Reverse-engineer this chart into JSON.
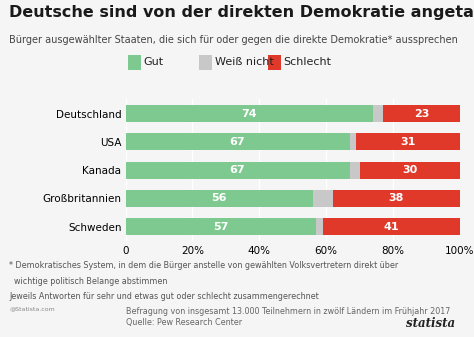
{
  "title": "Deutsche sind von der direkten Demokratie angetan",
  "subtitle": "Bürger ausgewählter Staaten, die sich für oder gegen die direkte Demokratie* aussprechen",
  "countries": [
    "Deutschland",
    "USA",
    "Kanada",
    "Großbritannien",
    "Schweden"
  ],
  "gut": [
    74,
    67,
    67,
    56,
    57
  ],
  "weiss_nicht": [
    3,
    2,
    3,
    6,
    2
  ],
  "schlecht": [
    23,
    31,
    30,
    38,
    41
  ],
  "color_gut": "#7DC98F",
  "color_weiss": "#C8C8C8",
  "color_schlecht": "#E0392A",
  "color_bg": "#F5F5F5",
  "color_grid": "#FFFFFF",
  "footnote1": "* Demokratisches System, in dem die Bürger anstelle von gewählten Volksvertretern direkt über",
  "footnote2": "  wichtige politisch Belange abstimmen",
  "footnote3": "Jeweils Antworten für sehr und etwas gut oder schlecht zusammengerechnet",
  "source1": "Befragung von insgesamt 13.000 Teilnehmern in zwölf Ländern im Frühjahr 2017",
  "source2": "Quelle: Pew Research Center",
  "legend_labels": [
    "Gut",
    "Weiß nicht",
    "Schlecht"
  ],
  "bar_height": 0.6,
  "title_fontsize": 11.5,
  "subtitle_fontsize": 7.0,
  "label_fontsize": 8.0,
  "tick_fontsize": 7.5,
  "legend_fontsize": 8.0,
  "footnote_fontsize": 5.8,
  "source_fontsize": 5.8
}
